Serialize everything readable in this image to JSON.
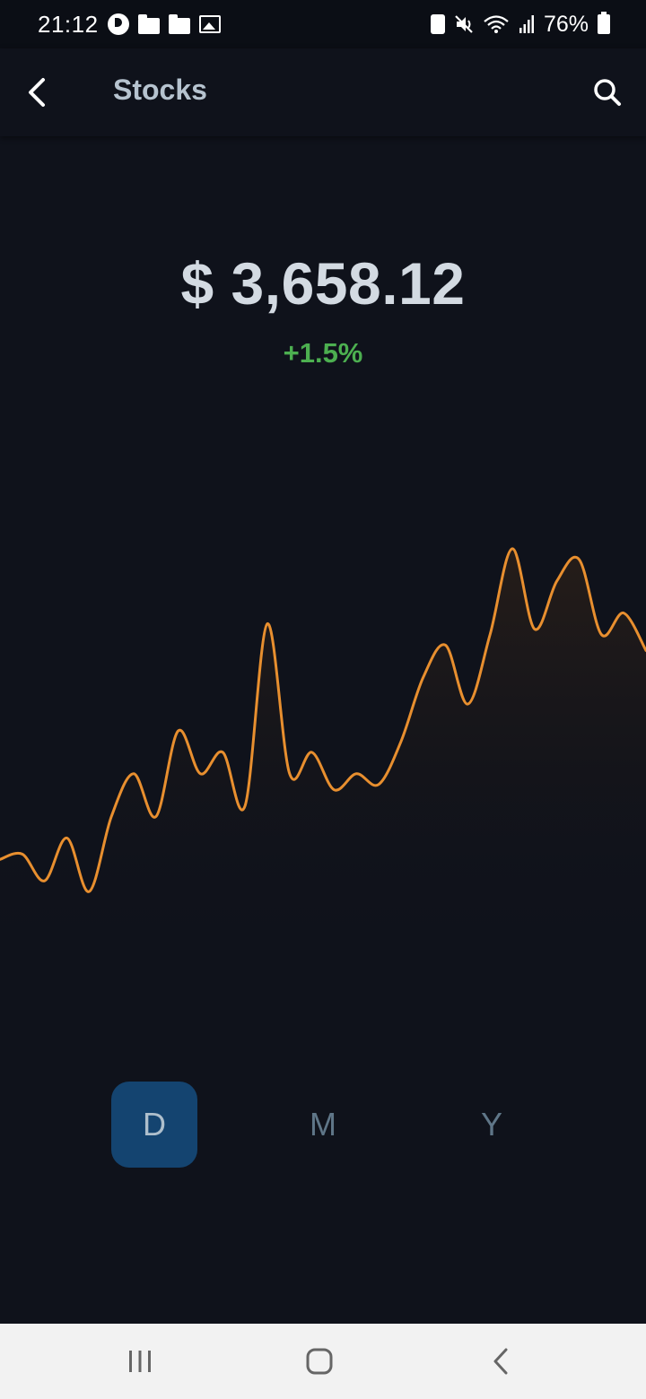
{
  "status_bar": {
    "time": "21:12",
    "battery": "76%",
    "left_icons": [
      "notification-app-icon",
      "folder-icon",
      "folder-icon",
      "image-icon"
    ],
    "right_icons": [
      "battery-saver-icon",
      "mute-icon",
      "wifi-icon",
      "signal-icon",
      "battery-icon"
    ]
  },
  "app_bar": {
    "title": "Stocks",
    "back_icon": "chevron-left-icon",
    "search_icon": "search-icon"
  },
  "quote": {
    "price": "$ 3,658.12",
    "change": "+1.5%",
    "change_color": "#4caf50"
  },
  "colors": {
    "background": "#0f121b",
    "line": "#e88f2f",
    "active_period": "#144470"
  },
  "chart_data": {
    "type": "area",
    "y": [
      42,
      43,
      38,
      46,
      36,
      50,
      58,
      50,
      66,
      58,
      62,
      52,
      86,
      58,
      62,
      55,
      58,
      56,
      64,
      76,
      82,
      71,
      84,
      100,
      85,
      94,
      98,
      84,
      88,
      81
    ]
  },
  "periods": [
    {
      "label": "D",
      "active": true
    },
    {
      "label": "M",
      "active": false
    },
    {
      "label": "Y",
      "active": false
    }
  ],
  "nav_bar": {
    "items": [
      "recent-apps-icon",
      "home-icon",
      "back-icon"
    ]
  }
}
